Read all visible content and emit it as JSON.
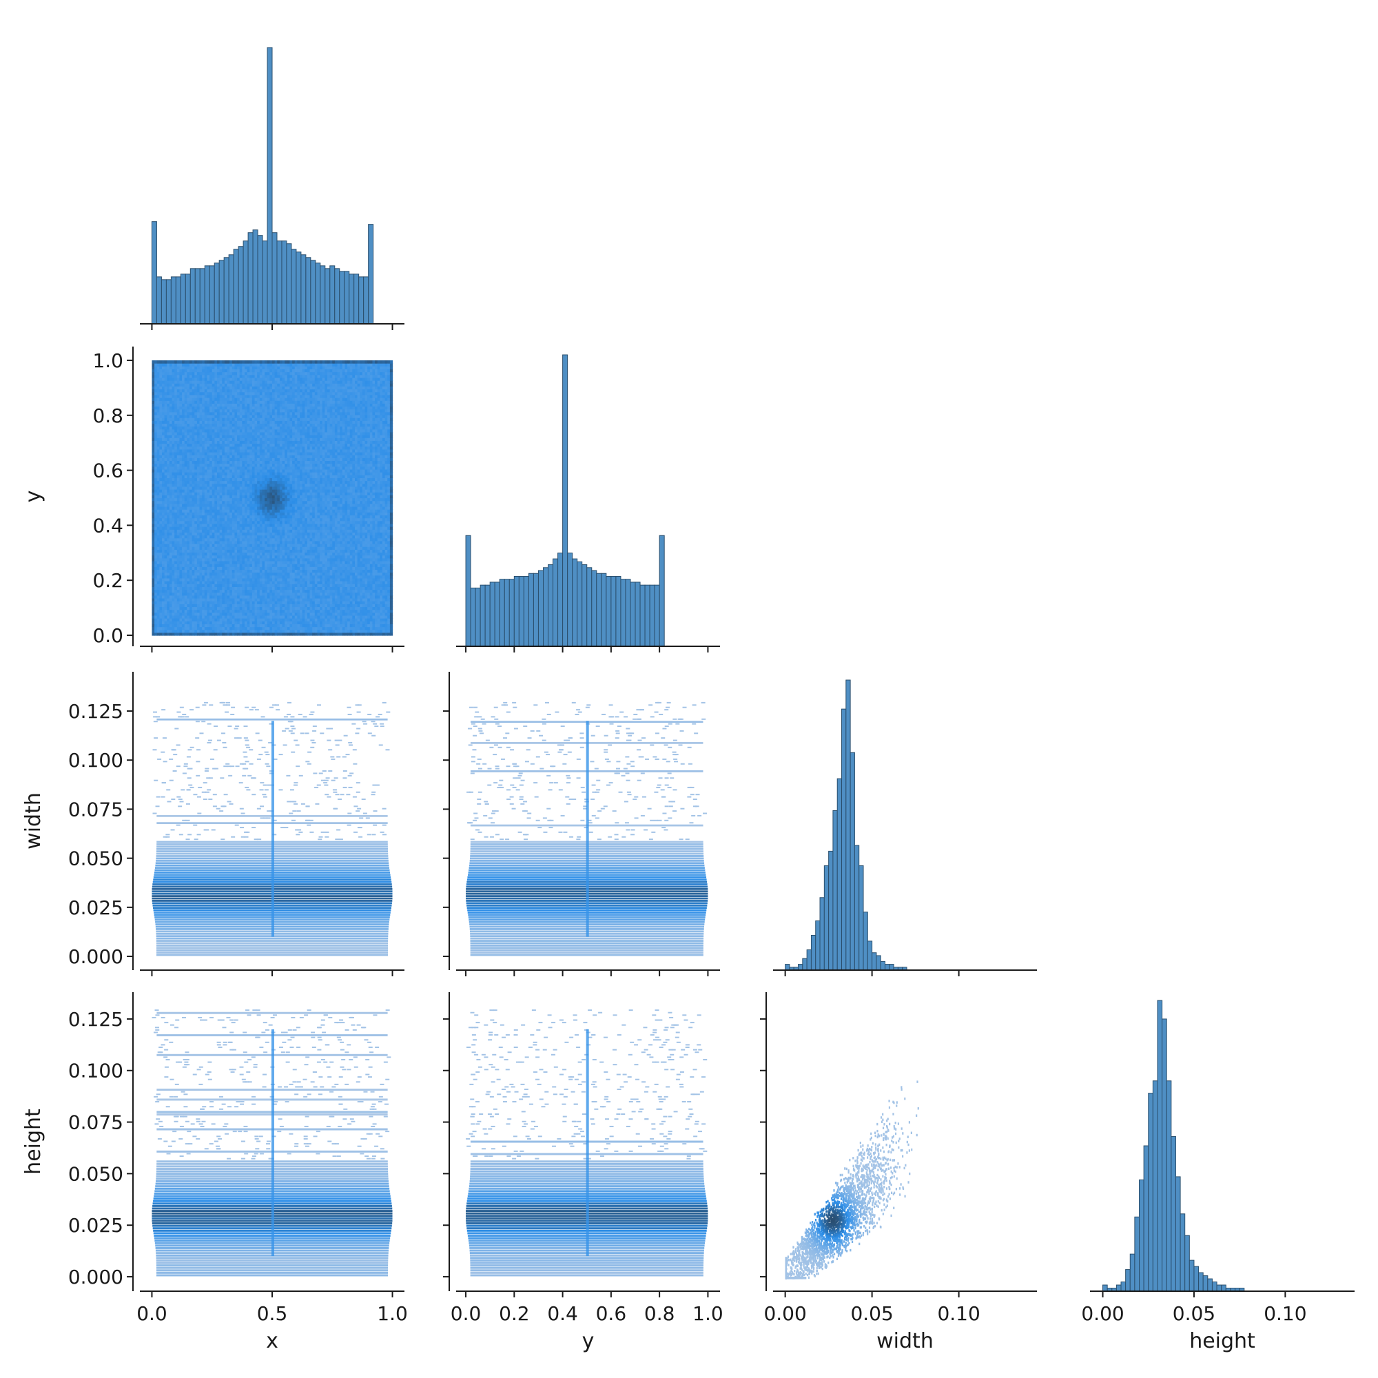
{
  "chart_data": {
    "type": "pairplot-corner",
    "variables": [
      "x",
      "y",
      "width",
      "height"
    ],
    "axis_labels": {
      "x": "x",
      "y": "y",
      "width": "width",
      "height": "height"
    },
    "colors": {
      "bar_fill": "#4f8fc4",
      "bar_edge": "#2b4f6d",
      "density_light": "#aec8e6",
      "density_mid": "#2c8ee8",
      "density_dark": "#2a4560"
    },
    "axes": {
      "x": {
        "range": [
          -0.05,
          1.05
        ],
        "ticks": [
          0.0,
          0.5,
          1.0
        ],
        "tick_labels": [
          "0.0",
          "0.5",
          "1.0"
        ]
      },
      "y": {
        "range": [
          -0.04,
          1.05
        ],
        "ticks": [
          0.0,
          0.2,
          0.4,
          0.6,
          0.8,
          1.0
        ],
        "tick_labels": [
          "0.0",
          "0.2",
          "0.4",
          "0.6",
          "0.8",
          "1.0"
        ]
      },
      "width": {
        "range": [
          -0.007,
          0.145
        ],
        "ticks": [
          0.0,
          0.025,
          0.05,
          0.075,
          0.1,
          0.125
        ],
        "tick_labels": [
          "0.000",
          "0.025",
          "0.050",
          "0.075",
          "0.100",
          "0.125"
        ],
        "x_ticks": [
          0.0,
          0.05,
          0.1
        ],
        "x_tick_labels": [
          "0.00",
          "0.05",
          "0.10"
        ]
      },
      "height": {
        "range": [
          -0.007,
          0.138
        ],
        "ticks": [
          0.0,
          0.025,
          0.05,
          0.075,
          0.1,
          0.125
        ],
        "tick_labels": [
          "0.000",
          "0.025",
          "0.050",
          "0.075",
          "0.100",
          "0.125"
        ],
        "x_ticks": [
          0.0,
          0.05,
          0.1
        ],
        "x_tick_labels": [
          "0.00",
          "0.05",
          "0.10"
        ]
      }
    },
    "histograms": {
      "x": {
        "bin_start": 0.0,
        "bin_width": 0.02,
        "counts": [
          37,
          17,
          16,
          16,
          17,
          17,
          18,
          18,
          20,
          20,
          20,
          21,
          21,
          22,
          23,
          24,
          25,
          27,
          28,
          30,
          33,
          34,
          32,
          30,
          100,
          33,
          30,
          30,
          29,
          27,
          26,
          25,
          24,
          23,
          22,
          21,
          20,
          21,
          20,
          19,
          19,
          18,
          18,
          17,
          17,
          36
        ]
      },
      "y": {
        "bin_start": 0.0,
        "bin_width": 0.02,
        "counts": [
          38,
          20,
          20,
          21,
          21,
          22,
          22,
          23,
          23,
          23,
          24,
          24,
          24,
          25,
          25,
          26,
          27,
          28,
          30,
          32,
          100,
          32,
          30,
          29,
          28,
          27,
          26,
          25,
          25,
          24,
          24,
          24,
          23,
          23,
          22,
          22,
          21,
          21,
          21,
          21,
          38
        ]
      },
      "width": {
        "bin_start": 0.0,
        "bin_width": 0.0025,
        "counts": [
          2,
          1,
          1,
          2,
          4,
          7,
          12,
          17,
          25,
          36,
          41,
          55,
          66,
          90,
          100,
          75,
          43,
          36,
          20,
          10,
          6,
          5,
          3,
          2,
          2,
          1,
          1,
          1,
          0,
          0,
          0,
          0,
          0,
          0,
          0,
          0,
          0,
          0,
          0,
          0,
          0,
          0,
          0,
          0,
          0,
          0,
          0,
          0,
          0,
          0,
          0,
          0,
          0,
          0,
          0,
          0
        ]
      },
      "height": {
        "bin_start": 0.0,
        "bin_width": 0.0025,
        "counts": [
          2,
          1,
          1,
          2,
          3,
          7,
          12,
          24,
          36,
          47,
          64,
          68,
          94,
          88,
          68,
          50,
          37,
          25,
          18,
          10,
          8,
          6,
          5,
          4,
          3,
          2,
          2,
          1,
          1,
          1,
          1,
          0,
          0,
          0,
          0,
          0,
          0,
          0,
          0,
          0,
          0,
          0,
          0,
          0,
          0,
          0,
          0,
          0,
          0,
          0,
          0,
          0,
          0,
          0,
          0,
          0
        ]
      }
    },
    "bivariate_panels": [
      {
        "x": "x",
        "y": "y",
        "style": "2d-histogram",
        "note": "uniform density with darker concentration near (0.5, 0.5) and along edges"
      },
      {
        "x": "x",
        "y": "width",
        "style": "2d-histogram",
        "note": "horizontal bands, densest near width 0.025-0.035"
      },
      {
        "x": "y",
        "y": "width",
        "style": "2d-histogram"
      },
      {
        "x": "x",
        "y": "height",
        "style": "2d-histogram",
        "note": "densest near height 0.025-0.03"
      },
      {
        "x": "y",
        "y": "height",
        "style": "2d-histogram"
      },
      {
        "x": "width",
        "y": "height",
        "style": "2d-histogram",
        "note": "positive correlation, densest near (0.025, 0.028)"
      }
    ]
  }
}
